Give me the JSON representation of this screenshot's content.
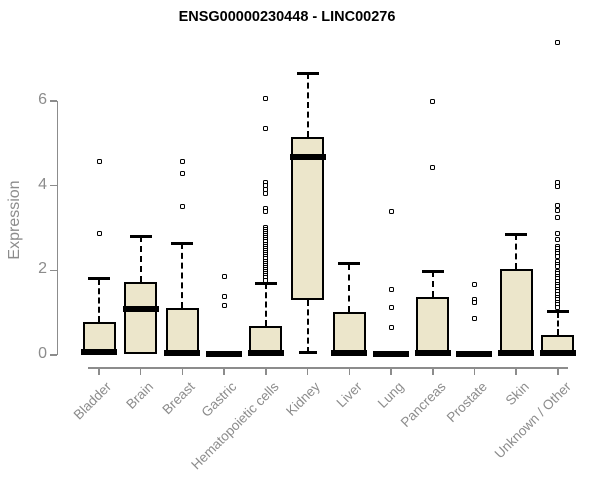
{
  "title": "ENSG00000230448 - LINC00276",
  "colors": {
    "box_fill": "#ECE6CB",
    "box_border": "#000000",
    "median": "#000000",
    "axis": "#8C8C8C",
    "tick_text": "#8C8C8C",
    "title_text": "#000000"
  },
  "chart_data": {
    "type": "boxplot",
    "title": "ENSG00000230448 - LINC00276",
    "xlabel": "",
    "ylabel": "Expression",
    "ylim": [
      0,
      7.5
    ],
    "yticks": [
      0,
      2,
      4,
      6
    ],
    "grid": false,
    "legend": null,
    "categories": [
      "Bladder",
      "Brain",
      "Breast",
      "Gastric",
      "Hematopoietic cells",
      "Kidney",
      "Liver",
      "Lung",
      "Pancreas",
      "Prostate",
      "Skin",
      "Unknown / Other"
    ],
    "boxes": [
      {
        "category": "Bladder",
        "q1": 0,
        "median": 0.07,
        "q3": 0.78,
        "whisker_low": null,
        "whisker_high": 1.8,
        "outliers": [
          4.58,
          2.88
        ]
      },
      {
        "category": "Brain",
        "q1": 0.02,
        "median": 1.08,
        "q3": 1.72,
        "whisker_low": null,
        "whisker_high": 2.81,
        "outliers": []
      },
      {
        "category": "Breast",
        "q1": 0,
        "median": 0.05,
        "q3": 1.12,
        "whisker_low": null,
        "whisker_high": 2.64,
        "outliers": [
          4.58,
          4.29,
          3.51
        ]
      },
      {
        "category": "Gastric",
        "q1": 0,
        "median": 0.03,
        "q3": 0.05,
        "whisker_low": null,
        "whisker_high": null,
        "outliers": [
          1.86,
          1.38,
          1.18
        ]
      },
      {
        "category": "Hematopoietic cells",
        "q1": 0,
        "median": 0.05,
        "q3": 0.69,
        "whisker_low": null,
        "whisker_high": 1.7,
        "outliers": [
          6.07,
          5.36,
          4.08,
          4.0,
          3.92,
          3.82,
          3.46,
          3.38,
          3.02,
          2.97,
          2.92,
          2.87,
          2.82,
          2.77,
          2.72,
          2.67,
          2.62,
          2.57,
          2.52,
          2.47,
          2.42,
          2.37,
          2.32,
          2.27,
          2.22,
          2.17,
          2.12,
          2.07,
          2.02,
          1.97,
          1.92,
          1.87,
          1.82,
          1.77
        ]
      },
      {
        "category": "Kidney",
        "q1": 1.3,
        "median": 4.68,
        "q3": 5.15,
        "whisker_low": 0.05,
        "whisker_high": 6.66,
        "outliers": []
      },
      {
        "category": "Liver",
        "q1": 0,
        "median": 0.05,
        "q3": 1.01,
        "whisker_low": null,
        "whisker_high": 2.15,
        "outliers": []
      },
      {
        "category": "Lung",
        "q1": 0,
        "median": 0.03,
        "q3": 0.05,
        "whisker_low": null,
        "whisker_high": null,
        "outliers": [
          3.38,
          1.55,
          1.13,
          0.66
        ]
      },
      {
        "category": "Pancreas",
        "q1": 0,
        "median": 0.05,
        "q3": 1.37,
        "whisker_low": null,
        "whisker_high": 1.98,
        "outliers": [
          6.0,
          4.42
        ]
      },
      {
        "category": "Prostate",
        "q1": 0,
        "median": 0.03,
        "q3": 0.05,
        "whisker_low": null,
        "whisker_high": null,
        "outliers": [
          1.67,
          1.3,
          1.24,
          0.87
        ]
      },
      {
        "category": "Skin",
        "q1": 0,
        "median": 0.05,
        "q3": 2.02,
        "whisker_low": null,
        "whisker_high": 2.85,
        "outliers": []
      },
      {
        "category": "Unknown / Other",
        "q1": 0,
        "median": 0.05,
        "q3": 0.47,
        "whisker_low": null,
        "whisker_high": 1.02,
        "outliers": [
          7.38,
          4.08,
          3.98,
          3.52,
          3.41,
          3.26,
          2.86,
          2.74,
          2.57,
          2.51,
          2.45,
          2.39,
          2.33,
          2.2,
          2.14,
          2.08,
          1.98,
          1.92,
          1.86,
          1.8,
          1.73,
          1.67,
          1.61,
          1.55,
          1.49,
          1.43,
          1.37,
          1.31,
          1.25,
          1.19,
          1.13
        ]
      }
    ]
  }
}
